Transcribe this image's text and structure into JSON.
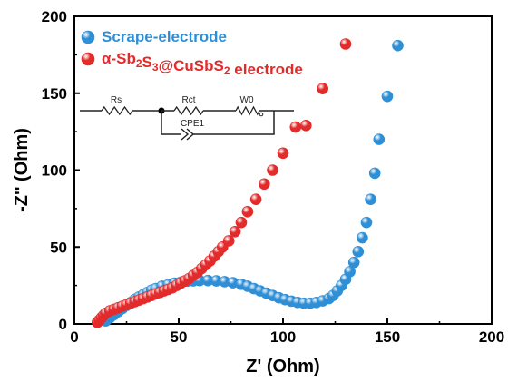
{
  "chart_data": {
    "type": "scatter",
    "xlabel": "Z' (Ohm)",
    "ylabel": "-Z'' (Ohm)",
    "xlim": [
      0,
      200
    ],
    "ylim": [
      0,
      200
    ],
    "xticks": [
      0,
      50,
      100,
      150,
      200
    ],
    "yticks": [
      0,
      50,
      100,
      150,
      200
    ],
    "legend_position": "top-left",
    "series": [
      {
        "name": "Scrape-electrode",
        "color": "#2f8fd6",
        "points": [
          [
            15,
            2
          ],
          [
            17,
            4
          ],
          [
            19,
            6
          ],
          [
            21,
            8
          ],
          [
            23,
            10
          ],
          [
            25,
            12
          ],
          [
            27,
            14
          ],
          [
            29,
            16
          ],
          [
            31,
            17.5
          ],
          [
            33,
            19
          ],
          [
            35,
            20.5
          ],
          [
            37,
            22
          ],
          [
            39,
            23
          ],
          [
            42,
            24.5
          ],
          [
            45,
            25.5
          ],
          [
            48,
            26.5
          ],
          [
            51,
            27.2
          ],
          [
            54,
            27.8
          ],
          [
            57,
            28
          ],
          [
            60,
            28.2
          ],
          [
            64,
            28.2
          ],
          [
            68,
            28
          ],
          [
            72,
            27.5
          ],
          [
            76,
            26.8
          ],
          [
            80,
            25.8
          ],
          [
            83,
            24.5
          ],
          [
            86,
            23
          ],
          [
            89,
            21.5
          ],
          [
            92,
            20
          ],
          [
            95,
            18.5
          ],
          [
            98,
            17
          ],
          [
            101,
            15.8
          ],
          [
            104,
            14.8
          ],
          [
            107,
            14
          ],
          [
            110,
            13.5
          ],
          [
            113,
            13.5
          ],
          [
            116,
            14
          ],
          [
            119,
            15
          ],
          [
            122,
            16.5
          ],
          [
            124,
            18.5
          ],
          [
            126,
            21.5
          ],
          [
            128,
            25
          ],
          [
            130,
            29
          ],
          [
            132,
            34
          ],
          [
            134,
            40
          ],
          [
            136,
            47
          ],
          [
            138,
            56
          ],
          [
            140,
            66
          ],
          [
            142,
            81
          ],
          [
            144,
            98
          ],
          [
            146,
            120
          ],
          [
            150,
            148
          ],
          [
            155,
            181
          ]
        ]
      },
      {
        "name": "α-Sb2S3@CuSbS2 electrode",
        "name_parts": [
          {
            "t": "α-Sb",
            "sub": false
          },
          {
            "t": "2",
            "sub": true
          },
          {
            "t": "S",
            "sub": false
          },
          {
            "t": "3",
            "sub": true
          },
          {
            "t": "@CuSbS",
            "sub": false
          },
          {
            "t": "2",
            "sub": true
          },
          {
            "t": " electrode",
            "sub": false
          }
        ],
        "color": "#e32b2b",
        "points": [
          [
            11,
            1
          ],
          [
            12,
            2.5
          ],
          [
            13,
            4
          ],
          [
            14,
            5.5
          ],
          [
            15,
            7
          ],
          [
            17,
            8.5
          ],
          [
            19,
            9.5
          ],
          [
            21,
            10.5
          ],
          [
            23,
            11.5
          ],
          [
            25,
            12.5
          ],
          [
            27,
            13.5
          ],
          [
            29,
            14.5
          ],
          [
            31,
            15.5
          ],
          [
            33,
            16.5
          ],
          [
            35,
            17.5
          ],
          [
            37,
            18.5
          ],
          [
            39,
            19.5
          ],
          [
            41,
            20.5
          ],
          [
            43,
            21.5
          ],
          [
            45,
            22.5
          ],
          [
            47,
            23.5
          ],
          [
            49,
            25
          ],
          [
            51,
            26.5
          ],
          [
            53,
            28
          ],
          [
            55,
            29.5
          ],
          [
            57,
            31.5
          ],
          [
            59,
            33.5
          ],
          [
            61,
            36
          ],
          [
            63,
            38.5
          ],
          [
            65,
            41
          ],
          [
            67,
            44
          ],
          [
            69,
            47
          ],
          [
            71,
            50
          ],
          [
            74,
            54
          ],
          [
            77,
            60
          ],
          [
            80,
            66
          ],
          [
            83,
            73
          ],
          [
            87,
            81
          ],
          [
            91,
            91
          ],
          [
            95,
            100
          ],
          [
            100,
            111
          ],
          [
            106,
            128
          ],
          [
            111,
            129
          ],
          [
            119,
            153
          ],
          [
            130,
            182
          ]
        ]
      }
    ],
    "inset": {
      "labels": [
        "Rs",
        "Rct",
        "W0",
        "CPE1"
      ]
    }
  }
}
